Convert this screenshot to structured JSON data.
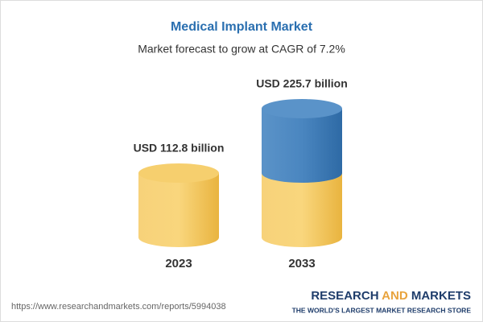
{
  "chart_data": {
    "type": "cylinder",
    "title": "Medical Implant Market",
    "subtitle": "Market forecast to grow at CAGR of 7.2%",
    "categories": [
      "2023",
      "2033"
    ],
    "values": [
      112.8,
      225.7
    ],
    "value_labels": [
      "USD 112.8 billion",
      "USD 225.7 billion"
    ],
    "colors": [
      "#f4c45a",
      "#3f7ab4"
    ]
  },
  "footer": {
    "url": "https://www.researchandmarkets.com/reports/5994038",
    "brand": [
      "RESEARCH",
      "AND",
      "MARKETS"
    ],
    "tagline": "THE WORLD'S LARGEST MARKET RESEARCH STORE"
  }
}
